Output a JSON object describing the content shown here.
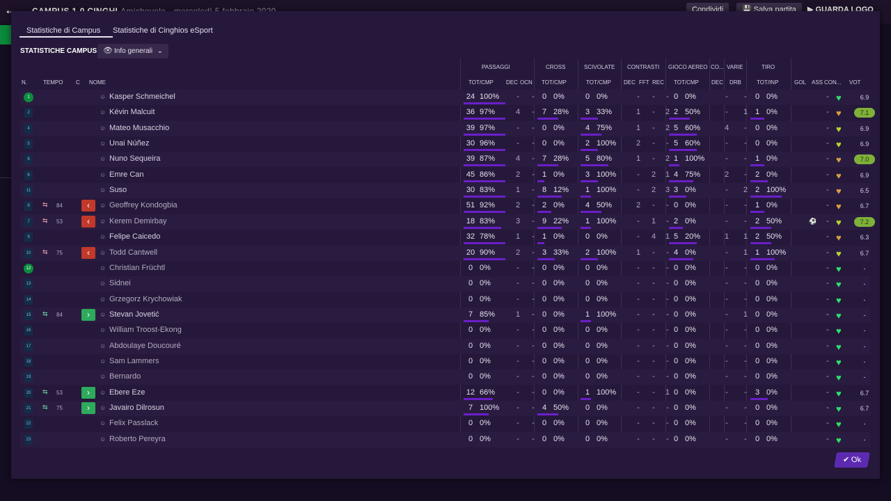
{
  "header": {
    "title": "CAMPUS 1-0 CINGHI",
    "subtitle": "Amichevole - mercoledì 5 febbraio 2020",
    "share_label": "Condividi",
    "save_label": "Salva partita",
    "play_label": "GUARDA LOGO"
  },
  "tabs": [
    "Statistiche di Campus",
    "Statistiche di Cinghios eSport"
  ],
  "section_title": "STATISTICHE CAMPUS",
  "dropdown": {
    "label": "Info generali"
  },
  "group_headers": {
    "passaggi": "PASSAGGI",
    "cross": "CROSS",
    "scivolate": "SCIVOLATE",
    "contrasti": "CONTRASTI",
    "gioco_aereo": "GIOCO AEREO",
    "co": "CO...",
    "varie": "VARIE",
    "tiro": "TIRO"
  },
  "col_headers": {
    "n": "N.",
    "tempo": "TEMPO",
    "c": "C",
    "nome": "NOME",
    "pass_tot": "TOT/CMP",
    "pass_dec": "DEC",
    "pass_ocn": "OCN",
    "cross_tot": "TOT/CMP",
    "sciv_tot": "TOT/CMP",
    "con_dec": "DEC",
    "con_fft": "FFT",
    "con_rec": "REC",
    "aereo_tot": "TOT/CMP",
    "co_dec": "DEC",
    "varie_drb": "DRB",
    "tiro_tot": "TOT/INP",
    "gol": "GOL",
    "ass": "ASS",
    "con": "CON...",
    "vot": "VOT"
  },
  "players": [
    {
      "n": "1",
      "name": "Kasper Schmeichel",
      "starter": true,
      "gk": true,
      "sub": "",
      "min": "",
      "pt": "24",
      "pp": "100%",
      "pw": 1.0,
      "pdec": "-",
      "pocn": "-",
      "ct": "0",
      "cp": "0%",
      "cw": 0,
      "st": "0",
      "sp": "0%",
      "sw": 0,
      "dec": "-",
      "fft": "-",
      "rec": "-",
      "at": "0",
      "ap": "0%",
      "aw": 0,
      "codec": "-",
      "drb": "-",
      "tt": "0",
      "tp": "0%",
      "tw": 0,
      "gol": "",
      "ass": "-",
      "heart": "#2ee06a",
      "vot": "6.9",
      "hi": false
    },
    {
      "n": "2",
      "name": "Kévin Malcuit",
      "starter": true,
      "gk": false,
      "sub": "",
      "min": "",
      "pt": "36",
      "pp": "97%",
      "pw": 1.0,
      "pdec": "4",
      "pocn": "-",
      "ct": "7",
      "cp": "28%",
      "cw": 0.6,
      "st": "3",
      "sp": "33%",
      "sw": 0.5,
      "dec": "1",
      "fft": "-",
      "rec": "2",
      "at": "2",
      "ap": "50%",
      "aw": 0.6,
      "codec": "-",
      "drb": "1",
      "tt": "1",
      "tp": "0%",
      "tw": 0.4,
      "gol": "",
      "ass": "-",
      "heart": "#d9a040",
      "vot": "7.1",
      "hi": true
    },
    {
      "n": "4",
      "name": "Mateo Musacchio",
      "starter": true,
      "gk": false,
      "sub": "",
      "min": "",
      "pt": "39",
      "pp": "97%",
      "pw": 1.0,
      "pdec": "-",
      "pocn": "-",
      "ct": "0",
      "cp": "0%",
      "cw": 0,
      "st": "4",
      "sp": "75%",
      "sw": 0.6,
      "dec": "1",
      "fft": "-",
      "rec": "2",
      "at": "5",
      "ap": "60%",
      "aw": 0.8,
      "codec": "4",
      "drb": "-",
      "tt": "0",
      "tp": "0%",
      "tw": 0,
      "gol": "",
      "ass": "-",
      "heart": "#b8d830",
      "vot": "6.9",
      "hi": false
    },
    {
      "n": "5",
      "name": "Unai Núñez",
      "starter": true,
      "gk": false,
      "sub": "",
      "min": "",
      "pt": "30",
      "pp": "96%",
      "pw": 1.0,
      "pdec": "-",
      "pocn": "-",
      "ct": "0",
      "cp": "0%",
      "cw": 0,
      "st": "2",
      "sp": "100%",
      "sw": 0.5,
      "dec": "2",
      "fft": "-",
      "rec": "-",
      "at": "5",
      "ap": "60%",
      "aw": 0.8,
      "codec": "-",
      "drb": "-",
      "tt": "0",
      "tp": "0%",
      "tw": 0,
      "gol": "",
      "ass": "-",
      "heart": "#b8d830",
      "vot": "6.9",
      "hi": false
    },
    {
      "n": "8",
      "name": "Nuno Sequeira",
      "starter": true,
      "gk": false,
      "sub": "",
      "min": "",
      "pt": "39",
      "pp": "87%",
      "pw": 1.0,
      "pdec": "4",
      "pocn": "-",
      "ct": "7",
      "cp": "28%",
      "cw": 0.6,
      "st": "5",
      "sp": "80%",
      "sw": 0.8,
      "dec": "1",
      "fft": "-",
      "rec": "2",
      "at": "1",
      "ap": "100%",
      "aw": 0.3,
      "codec": "-",
      "drb": "-",
      "tt": "1",
      "tp": "0%",
      "tw": 0.4,
      "gol": "",
      "ass": "-",
      "heart": "#d9a040",
      "vot": "7.0",
      "hi": true
    },
    {
      "n": "6",
      "name": "Emre Can",
      "starter": true,
      "gk": false,
      "sub": "",
      "min": "",
      "pt": "45",
      "pp": "86%",
      "pw": 1.0,
      "pdec": "2",
      "pocn": "-",
      "ct": "1",
      "cp": "0%",
      "cw": 0.2,
      "st": "3",
      "sp": "100%",
      "sw": 0.5,
      "dec": "-",
      "fft": "2",
      "rec": "1",
      "at": "4",
      "ap": "75%",
      "aw": 0.7,
      "codec": "2",
      "drb": "-",
      "tt": "2",
      "tp": "0%",
      "tw": 0.5,
      "gol": "",
      "ass": "-",
      "heart": "#d9a040",
      "vot": "6.9",
      "hi": false
    },
    {
      "n": "11",
      "name": "Suso",
      "starter": true,
      "gk": false,
      "sub": "",
      "min": "",
      "pt": "30",
      "pp": "83%",
      "pw": 1.0,
      "pdec": "1",
      "pocn": "-",
      "ct": "8",
      "cp": "12%",
      "cw": 0.7,
      "st": "1",
      "sp": "100%",
      "sw": 0.3,
      "dec": "-",
      "fft": "2",
      "rec": "3",
      "at": "3",
      "ap": "0%",
      "aw": 0.5,
      "codec": "-",
      "drb": "2",
      "tt": "2",
      "tp": "100%",
      "tw": 0.9,
      "gol": "",
      "ass": "-",
      "heart": "#d9a040",
      "vot": "6.5",
      "hi": false
    },
    {
      "n": "9",
      "name": "Geoffrey Kondogbia",
      "starter": false,
      "gk": false,
      "sub": "out",
      "min": "84",
      "pt": "51",
      "pp": "92%",
      "pw": 1.0,
      "pdec": "2",
      "pocn": "-",
      "ct": "2",
      "cp": "0%",
      "cw": 0.4,
      "st": "4",
      "sp": "50%",
      "sw": 0.6,
      "dec": "2",
      "fft": "-",
      "rec": "-",
      "at": "0",
      "ap": "0%",
      "aw": 0,
      "codec": "-",
      "drb": "-",
      "tt": "1",
      "tp": "0%",
      "tw": 0.4,
      "gol": "",
      "ass": "-",
      "heart": "#d9a040",
      "vot": "6.7",
      "hi": false
    },
    {
      "n": "7",
      "name": "Kerem Demirbay",
      "starter": false,
      "gk": false,
      "sub": "out",
      "min": "53",
      "pt": "18",
      "pp": "83%",
      "pw": 0.9,
      "pdec": "3",
      "pocn": "-",
      "ct": "9",
      "cp": "22%",
      "cw": 0.7,
      "st": "1",
      "sp": "100%",
      "sw": 0.3,
      "dec": "-",
      "fft": "1",
      "rec": "-",
      "at": "2",
      "ap": "0%",
      "aw": 0.4,
      "codec": "-",
      "drb": "-",
      "tt": "2",
      "tp": "50%",
      "tw": 0.6,
      "gol": "ball",
      "ass": "-",
      "heart": "#b8d830",
      "vot": "7.2",
      "hi": true
    },
    {
      "n": "9",
      "name": "Felipe Caicedo",
      "starter": true,
      "gk": false,
      "sub": "",
      "min": "",
      "pt": "32",
      "pp": "78%",
      "pw": 1.0,
      "pdec": "1",
      "pocn": "-",
      "ct": "1",
      "cp": "0%",
      "cw": 0.2,
      "st": "0",
      "sp": "0%",
      "sw": 0,
      "dec": "-",
      "fft": "4",
      "rec": "1",
      "at": "5",
      "ap": "20%",
      "aw": 0.8,
      "codec": "1",
      "drb": "1",
      "tt": "2",
      "tp": "50%",
      "tw": 0.6,
      "gol": "",
      "ass": "-",
      "heart": "#d9a040",
      "vot": "6.3",
      "hi": false
    },
    {
      "n": "10",
      "name": "Todd Cantwell",
      "starter": false,
      "gk": false,
      "sub": "out",
      "min": "75",
      "pt": "20",
      "pp": "90%",
      "pw": 1.0,
      "pdec": "2",
      "pocn": "-",
      "ct": "3",
      "cp": "33%",
      "cw": 0.5,
      "st": "2",
      "sp": "100%",
      "sw": 0.5,
      "dec": "1",
      "fft": "-",
      "rec": "-",
      "at": "4",
      "ap": "0%",
      "aw": 0.7,
      "codec": "-",
      "drb": "1",
      "tt": "1",
      "tp": "100%",
      "tw": 0.7,
      "gol": "",
      "ass": "-",
      "heart": "#b8d830",
      "vot": "6.7",
      "hi": false
    },
    {
      "n": "12",
      "name": "Christian Früchtl",
      "starter": false,
      "gk": true,
      "sub": "",
      "min": "",
      "pt": "0",
      "pp": "0%",
      "pw": 0,
      "pdec": "-",
      "pocn": "-",
      "ct": "0",
      "cp": "0%",
      "cw": 0,
      "st": "0",
      "sp": "0%",
      "sw": 0,
      "dec": "-",
      "fft": "-",
      "rec": "-",
      "at": "0",
      "ap": "0%",
      "aw": 0,
      "codec": "-",
      "drb": "-",
      "tt": "0",
      "tp": "0%",
      "tw": 0,
      "gol": "",
      "ass": "-",
      "heart": "#2ee06a",
      "vot": "-",
      "hi": false
    },
    {
      "n": "13",
      "name": "Sidnei",
      "starter": false,
      "gk": false,
      "sub": "",
      "min": "",
      "pt": "0",
      "pp": "0%",
      "pw": 0,
      "pdec": "-",
      "pocn": "-",
      "ct": "0",
      "cp": "0%",
      "cw": 0,
      "st": "0",
      "sp": "0%",
      "sw": 0,
      "dec": "-",
      "fft": "-",
      "rec": "-",
      "at": "0",
      "ap": "0%",
      "aw": 0,
      "codec": "-",
      "drb": "-",
      "tt": "0",
      "tp": "0%",
      "tw": 0,
      "gol": "",
      "ass": "-",
      "heart": "#2ee06a",
      "vot": "-",
      "hi": false
    },
    {
      "n": "14",
      "name": "Grzegorz Krychowiak",
      "starter": false,
      "gk": false,
      "sub": "",
      "min": "",
      "pt": "0",
      "pp": "0%",
      "pw": 0,
      "pdec": "-",
      "pocn": "-",
      "ct": "0",
      "cp": "0%",
      "cw": 0,
      "st": "0",
      "sp": "0%",
      "sw": 0,
      "dec": "-",
      "fft": "-",
      "rec": "-",
      "at": "0",
      "ap": "0%",
      "aw": 0,
      "codec": "-",
      "drb": "-",
      "tt": "0",
      "tp": "0%",
      "tw": 0,
      "gol": "",
      "ass": "-",
      "heart": "#2ee06a",
      "vot": "-",
      "hi": false
    },
    {
      "n": "15",
      "name": "Stevan Jovetić",
      "starter": true,
      "gk": false,
      "sub": "in",
      "min": "84",
      "pt": "7",
      "pp": "85%",
      "pw": 0.6,
      "pdec": "1",
      "pocn": "-",
      "ct": "0",
      "cp": "0%",
      "cw": 0,
      "st": "1",
      "sp": "100%",
      "sw": 0.3,
      "dec": "-",
      "fft": "-",
      "rec": "-",
      "at": "0",
      "ap": "0%",
      "aw": 0,
      "codec": "-",
      "drb": "1",
      "tt": "0",
      "tp": "0%",
      "tw": 0,
      "gol": "",
      "ass": "-",
      "heart": "#2ee06a",
      "vot": "-",
      "hi": false
    },
    {
      "n": "16",
      "name": "William Troost-Ekong",
      "starter": false,
      "gk": false,
      "sub": "",
      "min": "",
      "pt": "0",
      "pp": "0%",
      "pw": 0,
      "pdec": "-",
      "pocn": "-",
      "ct": "0",
      "cp": "0%",
      "cw": 0,
      "st": "0",
      "sp": "0%",
      "sw": 0,
      "dec": "-",
      "fft": "-",
      "rec": "-",
      "at": "0",
      "ap": "0%",
      "aw": 0,
      "codec": "-",
      "drb": "-",
      "tt": "0",
      "tp": "0%",
      "tw": 0,
      "gol": "",
      "ass": "-",
      "heart": "#2ee06a",
      "vot": "-",
      "hi": false
    },
    {
      "n": "17",
      "name": "Abdoulaye Doucouré",
      "starter": false,
      "gk": false,
      "sub": "",
      "min": "",
      "pt": "0",
      "pp": "0%",
      "pw": 0,
      "pdec": "-",
      "pocn": "-",
      "ct": "0",
      "cp": "0%",
      "cw": 0,
      "st": "0",
      "sp": "0%",
      "sw": 0,
      "dec": "-",
      "fft": "-",
      "rec": "-",
      "at": "0",
      "ap": "0%",
      "aw": 0,
      "codec": "-",
      "drb": "-",
      "tt": "0",
      "tp": "0%",
      "tw": 0,
      "gol": "",
      "ass": "-",
      "heart": "#2ee06a",
      "vot": "-",
      "hi": false
    },
    {
      "n": "18",
      "name": "Sam Lammers",
      "starter": false,
      "gk": false,
      "sub": "",
      "min": "",
      "pt": "0",
      "pp": "0%",
      "pw": 0,
      "pdec": "-",
      "pocn": "-",
      "ct": "0",
      "cp": "0%",
      "cw": 0,
      "st": "0",
      "sp": "0%",
      "sw": 0,
      "dec": "-",
      "fft": "-",
      "rec": "-",
      "at": "0",
      "ap": "0%",
      "aw": 0,
      "codec": "-",
      "drb": "-",
      "tt": "0",
      "tp": "0%",
      "tw": 0,
      "gol": "",
      "ass": "-",
      "heart": "#2ee06a",
      "vot": "-",
      "hi": false
    },
    {
      "n": "19",
      "name": "Bernardo",
      "starter": false,
      "gk": false,
      "sub": "",
      "min": "",
      "pt": "0",
      "pp": "0%",
      "pw": 0,
      "pdec": "-",
      "pocn": "-",
      "ct": "0",
      "cp": "0%",
      "cw": 0,
      "st": "0",
      "sp": "0%",
      "sw": 0,
      "dec": "-",
      "fft": "-",
      "rec": "-",
      "at": "0",
      "ap": "0%",
      "aw": 0,
      "codec": "-",
      "drb": "-",
      "tt": "0",
      "tp": "0%",
      "tw": 0,
      "gol": "",
      "ass": "-",
      "heart": "#2ee06a",
      "vot": "-",
      "hi": false
    },
    {
      "n": "20",
      "name": "Ebere Eze",
      "starter": true,
      "gk": false,
      "sub": "in",
      "min": "53",
      "pt": "12",
      "pp": "66%",
      "pw": 0.7,
      "pdec": "-",
      "pocn": "-",
      "ct": "0",
      "cp": "0%",
      "cw": 0,
      "st": "1",
      "sp": "100%",
      "sw": 0.3,
      "dec": "-",
      "fft": "-",
      "rec": "1",
      "at": "0",
      "ap": "0%",
      "aw": 0,
      "codec": "-",
      "drb": "-",
      "tt": "3",
      "tp": "0%",
      "tw": 0.5,
      "gol": "",
      "ass": "-",
      "heart": "#2ee06a",
      "vot": "6.7",
      "hi": false
    },
    {
      "n": "21",
      "name": "Javairo Dilrosun",
      "starter": true,
      "gk": false,
      "sub": "in",
      "min": "75",
      "pt": "7",
      "pp": "100%",
      "pw": 0.6,
      "pdec": "-",
      "pocn": "-",
      "ct": "4",
      "cp": "50%",
      "cw": 0.6,
      "st": "0",
      "sp": "0%",
      "sw": 0,
      "dec": "-",
      "fft": "-",
      "rec": "-",
      "at": "0",
      "ap": "0%",
      "aw": 0,
      "codec": "-",
      "drb": "-",
      "tt": "0",
      "tp": "0%",
      "tw": 0,
      "gol": "",
      "ass": "-",
      "heart": "#2ee06a",
      "vot": "6.7",
      "hi": false
    },
    {
      "n": "22",
      "name": "Felix Passlack",
      "starter": false,
      "gk": false,
      "sub": "",
      "min": "",
      "pt": "0",
      "pp": "0%",
      "pw": 0,
      "pdec": "-",
      "pocn": "-",
      "ct": "0",
      "cp": "0%",
      "cw": 0,
      "st": "0",
      "sp": "0%",
      "sw": 0,
      "dec": "-",
      "fft": "-",
      "rec": "-",
      "at": "0",
      "ap": "0%",
      "aw": 0,
      "codec": "-",
      "drb": "-",
      "tt": "0",
      "tp": "0%",
      "tw": 0,
      "gol": "",
      "ass": "-",
      "heart": "#2ee06a",
      "vot": "-",
      "hi": false
    },
    {
      "n": "23",
      "name": "Roberto Pereyra",
      "starter": false,
      "gk": false,
      "sub": "",
      "min": "",
      "pt": "0",
      "pp": "0%",
      "pw": 0,
      "pdec": "-",
      "pocn": "-",
      "ct": "0",
      "cp": "0%",
      "cw": 0,
      "st": "0",
      "sp": "0%",
      "sw": 0,
      "dec": "-",
      "fft": "-",
      "rec": "-",
      "at": "0",
      "ap": "0%",
      "aw": 0,
      "codec": "-",
      "drb": "-",
      "tt": "0",
      "tp": "0%",
      "tw": 0,
      "gol": "",
      "ass": "-",
      "heart": "#2ee06a",
      "vot": "-",
      "hi": false
    }
  ],
  "ok_label": "Ok"
}
